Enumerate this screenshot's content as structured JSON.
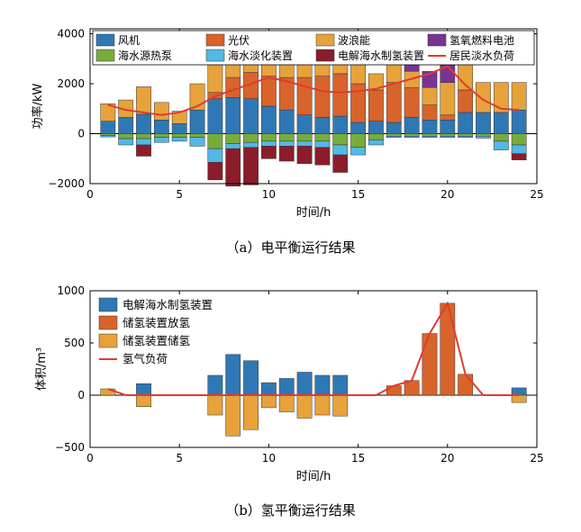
{
  "colors": {
    "wind": "#2f78b6",
    "pv": "#d9642b",
    "wave": "#e7a23b",
    "fuelcell": "#7b3294",
    "heatpump": "#77ac3a",
    "desal": "#52b8e6",
    "electrolyzer": "#8b1d2b",
    "load": "#e23a2f",
    "h2_electrolyzer": "#2f78b6",
    "h2_discharge": "#d9642b",
    "h2_charge": "#e7a23b",
    "h2_load": "#e23a2f"
  },
  "captions": {
    "a": "（a）电平衡运行结果",
    "b": "（b）氢平衡运行结果"
  },
  "chart_data": [
    {
      "type": "bar",
      "stacked": true,
      "x": [
        1,
        2,
        3,
        4,
        5,
        6,
        7,
        8,
        9,
        10,
        11,
        12,
        13,
        14,
        15,
        16,
        17,
        18,
        19,
        20,
        21,
        22,
        23,
        24
      ],
      "xlabel": "时间/h",
      "ylabel": "功率/kW",
      "xlim": [
        0,
        25
      ],
      "ylim": [
        -2000,
        4200
      ],
      "xticks": [
        0,
        5,
        10,
        15,
        20,
        25
      ],
      "yticks": [
        -2000,
        0,
        2000,
        4000
      ],
      "legend_position": "top",
      "series": [
        {
          "name": "风机",
          "key": "wind",
          "values": [
            500,
            650,
            780,
            550,
            400,
            950,
            1400,
            1450,
            1400,
            1100,
            950,
            750,
            650,
            700,
            450,
            500,
            450,
            650,
            550,
            550,
            850,
            850,
            850,
            950
          ]
        },
        {
          "name": "光伏",
          "key": "pv",
          "values": [
            0,
            0,
            0,
            0,
            0,
            0,
            250,
            800,
            1050,
            1200,
            1300,
            1500,
            1650,
            1700,
            1550,
            1250,
            1600,
            1200,
            600,
            200,
            900,
            0,
            0,
            0
          ]
        },
        {
          "name": "波浪能",
          "key": "wave",
          "values": [
            700,
            700,
            1100,
            700,
            500,
            1050,
            1200,
            600,
            350,
            550,
            600,
            650,
            550,
            550,
            800,
            650,
            800,
            650,
            700,
            1300,
            1100,
            1200,
            1200,
            1100
          ]
        },
        {
          "name": "氢氧燃料电池",
          "key": "fuelcell",
          "values": [
            0,
            0,
            0,
            0,
            0,
            0,
            0,
            0,
            0,
            0,
            0,
            0,
            0,
            0,
            0,
            0,
            200,
            300,
            650,
            700,
            0,
            0,
            0,
            0
          ]
        },
        {
          "name": "海水源热泵",
          "key": "heatpump",
          "values": [
            -80,
            -200,
            -200,
            -150,
            -150,
            -150,
            -600,
            -400,
            -350,
            -300,
            -300,
            -300,
            -300,
            -450,
            -550,
            -250,
            -100,
            -100,
            -100,
            -100,
            -100,
            -100,
            -300,
            -450
          ]
        },
        {
          "name": "海水淡化装置",
          "key": "desal",
          "values": [
            -50,
            -250,
            -250,
            -200,
            -150,
            -350,
            -550,
            -200,
            -200,
            -200,
            -200,
            -200,
            -250,
            -400,
            -300,
            -200,
            -50,
            -50,
            -50,
            -50,
            -50,
            -80,
            -350,
            -350
          ]
        },
        {
          "name": "电解海水制氢装置",
          "key": "electrolyzer",
          "values": [
            0,
            0,
            -450,
            0,
            0,
            0,
            -700,
            -1500,
            -1500,
            -500,
            -600,
            -700,
            -700,
            -700,
            0,
            0,
            0,
            0,
            0,
            0,
            0,
            0,
            0,
            -250
          ]
        }
      ],
      "line": {
        "name": "居民淡水负荷",
        "key": "load",
        "values": [
          1150,
          950,
          850,
          750,
          850,
          1100,
          1500,
          1750,
          2000,
          2250,
          2100,
          1900,
          1700,
          1650,
          1700,
          1800,
          2000,
          2200,
          2400,
          2700,
          1950,
          1350,
          1000,
          950
        ]
      }
    },
    {
      "type": "bar",
      "x": [
        1,
        2,
        3,
        4,
        5,
        6,
        7,
        8,
        9,
        10,
        11,
        12,
        13,
        14,
        15,
        16,
        17,
        18,
        19,
        20,
        21,
        22,
        23,
        24
      ],
      "xlabel": "时间/h",
      "ylabel": "体积/m³",
      "xlim": [
        0,
        25
      ],
      "ylim": [
        -500,
        1000
      ],
      "xticks": [
        0,
        5,
        10,
        15,
        20,
        25
      ],
      "yticks": [
        -500,
        0,
        500,
        1000
      ],
      "legend_position": "top-left",
      "series": [
        {
          "name": "电解海水制氢装置",
          "key": "h2_electrolyzer",
          "values": [
            0,
            0,
            110,
            0,
            0,
            0,
            190,
            390,
            330,
            120,
            160,
            220,
            190,
            190,
            0,
            0,
            0,
            0,
            0,
            0,
            0,
            0,
            0,
            70
          ]
        },
        {
          "name": "储氢装置放氢",
          "key": "h2_discharge",
          "values": [
            0,
            0,
            0,
            0,
            0,
            0,
            0,
            0,
            0,
            0,
            0,
            0,
            0,
            0,
            0,
            0,
            90,
            140,
            590,
            880,
            200,
            0,
            0,
            0
          ]
        },
        {
          "name": "储氢装置储氢",
          "key": "h2_charge",
          "values": [
            60,
            0,
            -110,
            0,
            0,
            0,
            -190,
            -390,
            -330,
            -120,
            -160,
            -220,
            -190,
            -200,
            0,
            0,
            0,
            0,
            0,
            0,
            0,
            0,
            0,
            -70
          ]
        }
      ],
      "line": {
        "name": "氢气负荷",
        "key": "h2_load",
        "values": [
          60,
          0,
          0,
          0,
          0,
          0,
          0,
          0,
          0,
          0,
          0,
          0,
          0,
          0,
          0,
          0,
          90,
          140,
          590,
          880,
          200,
          0,
          0,
          0
        ]
      }
    }
  ]
}
